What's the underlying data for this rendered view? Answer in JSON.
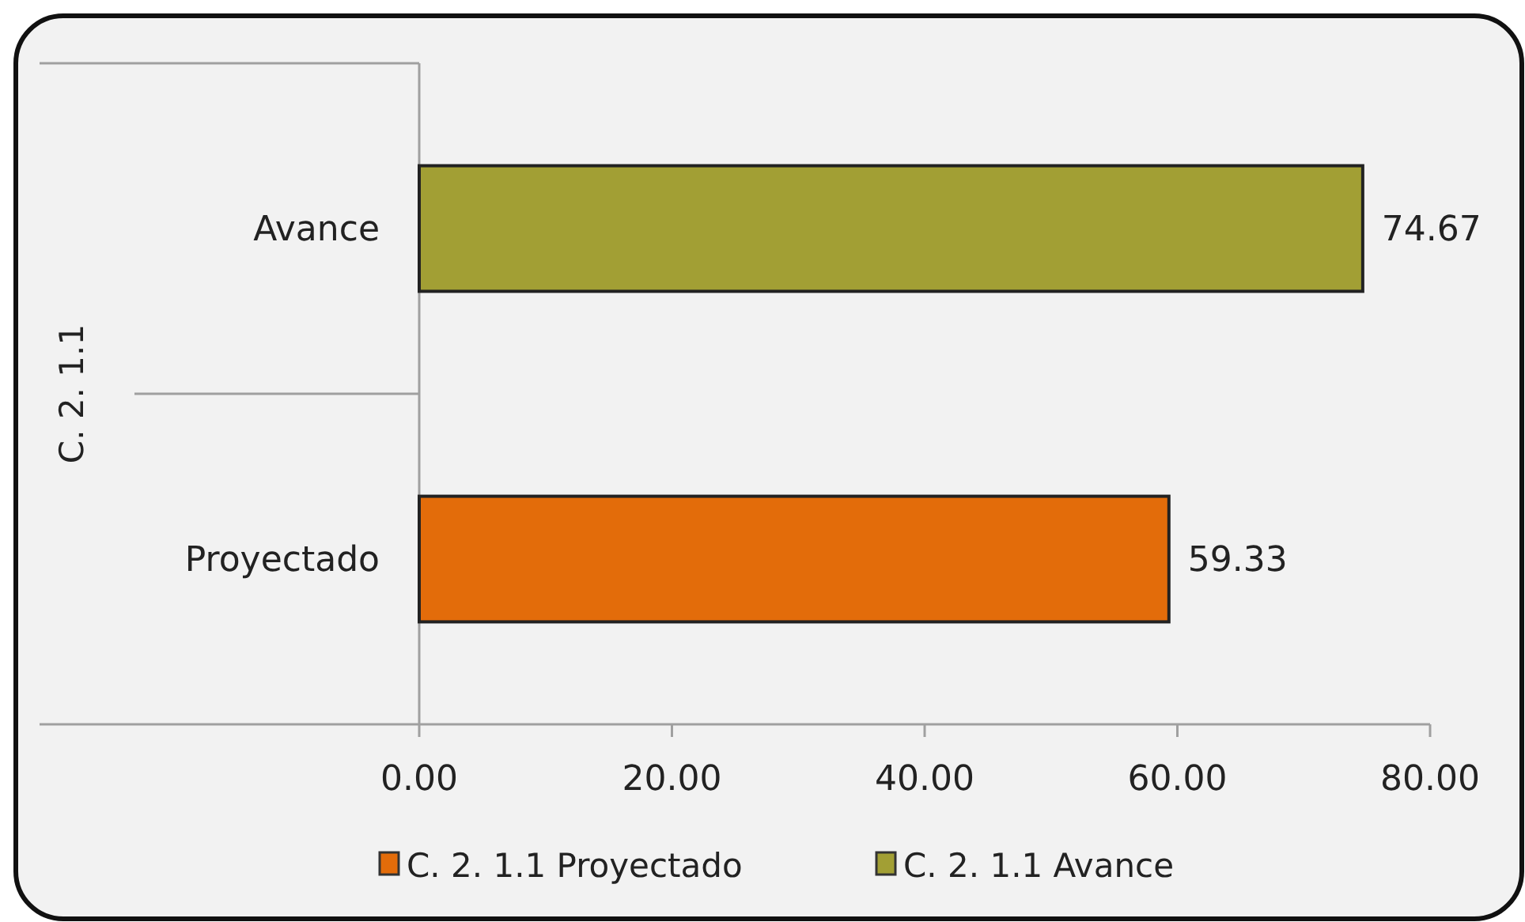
{
  "chart_data": {
    "type": "bar",
    "orientation": "horizontal",
    "ylabel": "C. 2. 1.1",
    "categories": [
      "Avance",
      "Proyectado"
    ],
    "series": [
      {
        "name": "C. 2. 1.1 Proyectado",
        "color": "#e36c0a",
        "values": [
          null,
          59.33
        ]
      },
      {
        "name": "C. 2. 1.1 Avance",
        "color": "#a29f34",
        "values": [
          74.67,
          null
        ]
      }
    ],
    "xlim": [
      0,
      80
    ],
    "xticks": [
      {
        "value": 0,
        "label": "0.00"
      },
      {
        "value": 20,
        "label": "20.00"
      },
      {
        "value": 40,
        "label": "40.00"
      },
      {
        "value": 60,
        "label": "60.00"
      },
      {
        "value": 80,
        "label": "80.00"
      }
    ],
    "data_labels": true,
    "legend": "bottom",
    "grid": false
  }
}
